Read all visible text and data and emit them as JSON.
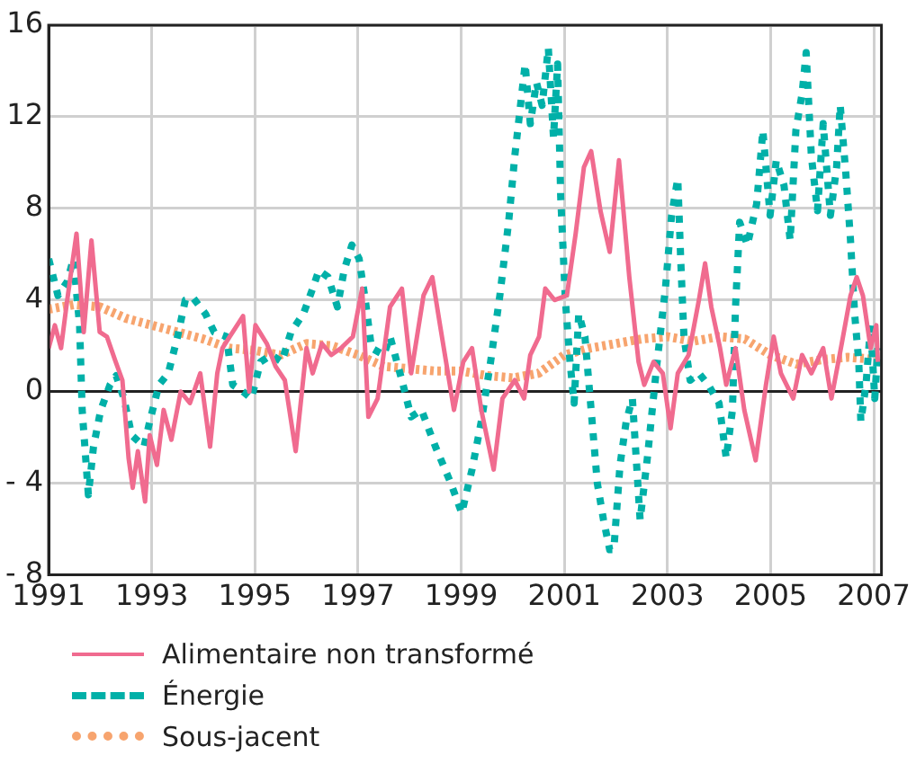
{
  "chart_data": {
    "type": "line",
    "xlim": [
      1991,
      2007.15
    ],
    "ylim": [
      -8,
      16
    ],
    "xticks": [
      1991,
      1993,
      1995,
      1997,
      1999,
      2001,
      2003,
      2005,
      2007
    ],
    "yticks": [
      {
        "value": -8,
        "label": "- 8"
      },
      {
        "value": -4,
        "label": "- 4"
      },
      0,
      4,
      8,
      12,
      16
    ],
    "grid": true,
    "legend": "bottom",
    "series": [
      {
        "name": "Alimentaire non transformé",
        "color": "#f06b8f",
        "line_style": "solid",
        "x": [
          1991.0,
          1991.12,
          1991.24,
          1991.36,
          1991.54,
          1991.68,
          1991.83,
          1991.99,
          1992.13,
          1992.3,
          1992.43,
          1992.55,
          1992.63,
          1992.73,
          1992.87,
          1992.96,
          1993.1,
          1993.23,
          1993.38,
          1993.56,
          1993.74,
          1993.94,
          1994.13,
          1994.27,
          1994.37,
          1994.51,
          1994.77,
          1994.89,
          1995.01,
          1995.23,
          1995.4,
          1995.58,
          1995.79,
          1996.0,
          1996.12,
          1996.3,
          1996.48,
          1996.67,
          1996.9,
          1997.08,
          1997.2,
          1997.38,
          1997.62,
          1997.85,
          1998.03,
          1998.27,
          1998.44,
          1998.59,
          1998.86,
          1999.04,
          1999.21,
          1999.39,
          1999.63,
          1999.8,
          2000.04,
          2000.22,
          2000.34,
          2000.51,
          2000.63,
          2000.81,
          2001.05,
          2001.22,
          2001.38,
          2001.52,
          2001.7,
          2001.88,
          2002.06,
          2002.26,
          2002.44,
          2002.55,
          2002.73,
          2002.91,
          2003.06,
          2003.2,
          2003.41,
          2003.61,
          2003.73,
          2003.85,
          2004.02,
          2004.14,
          2004.32,
          2004.49,
          2004.71,
          2004.91,
          2005.06,
          2005.2,
          2005.44,
          2005.61,
          2005.79,
          2006.02,
          2006.18,
          2006.38,
          2006.55,
          2006.67,
          2006.79,
          2006.94,
          2007.05,
          2007.08
        ],
        "values": [
          1.9,
          2.9,
          1.9,
          4,
          6.9,
          2.6,
          6.6,
          2.6,
          2.4,
          1.3,
          0.5,
          -2.9,
          -4.2,
          -2.6,
          -4.8,
          -1.9,
          -3.2,
          -0.8,
          -2.1,
          0,
          -0.5,
          0.8,
          -2.4,
          0.8,
          1.9,
          2.4,
          3.3,
          0,
          2.9,
          2.1,
          1.1,
          0.5,
          -2.6,
          1.9,
          0.8,
          2.1,
          1.6,
          1.9,
          2.4,
          4.5,
          -1.1,
          -0.3,
          3.7,
          4.5,
          0.8,
          4.2,
          5,
          2.9,
          -0.8,
          1.3,
          1.9,
          -0.8,
          -3.4,
          -0.3,
          0.5,
          -0.3,
          1.6,
          2.4,
          4.5,
          4,
          4.2,
          6.9,
          9.8,
          10.5,
          7.9,
          6.1,
          10.1,
          5,
          1.3,
          0.3,
          1.3,
          0.8,
          -1.6,
          0.8,
          1.6,
          4,
          5.6,
          3.7,
          1.9,
          0.3,
          1.9,
          -0.8,
          -3,
          0.3,
          2.4,
          0.8,
          -0.3,
          1.6,
          0.8,
          1.9,
          -0.3,
          2.1,
          4.2,
          5,
          4.2,
          1.9,
          2.9,
          1.3
        ]
      },
      {
        "name": "Énergie",
        "color": "#00b0a8",
        "line_style": "dashed",
        "x": [
          1991.0,
          1991.18,
          1991.36,
          1991.48,
          1991.6,
          1991.65,
          1991.77,
          1991.87,
          1992.01,
          1992.19,
          1992.31,
          1992.46,
          1992.61,
          1992.85,
          1992.96,
          1993.14,
          1993.32,
          1993.5,
          1993.65,
          1993.8,
          1994.04,
          1994.21,
          1994.45,
          1994.57,
          1994.77,
          1994.93,
          1995.11,
          1995.32,
          1995.52,
          1995.7,
          1995.94,
          1996.12,
          1996.24,
          1996.42,
          1996.6,
          1996.73,
          1996.88,
          1997.02,
          1997.14,
          1997.26,
          1997.5,
          1997.62,
          1997.85,
          1998.03,
          1998.23,
          1998.5,
          1998.8,
          1999.01,
          1999.21,
          1999.39,
          1999.57,
          1999.75,
          1999.92,
          2000.04,
          2000.16,
          2000.24,
          2000.34,
          2000.46,
          2000.57,
          2000.69,
          2000.79,
          2000.87,
          2000.93,
          2001.02,
          2001.11,
          2001.19,
          2001.28,
          2001.4,
          2001.52,
          2001.64,
          2001.76,
          2001.88,
          2001.96,
          2002.08,
          2002.2,
          2002.32,
          2002.47,
          2002.61,
          2002.79,
          2002.96,
          2003.08,
          2003.2,
          2003.26,
          2003.32,
          2003.44,
          2003.61,
          2003.79,
          2004.0,
          2004.14,
          2004.26,
          2004.32,
          2004.4,
          2004.55,
          2004.73,
          2004.85,
          2004.99,
          2005.11,
          2005.26,
          2005.38,
          2005.49,
          2005.61,
          2005.69,
          2005.79,
          2005.91,
          2006.02,
          2006.16,
          2006.28,
          2006.35,
          2006.46,
          2006.55,
          2006.63,
          2006.71,
          2006.75,
          2006.85,
          2006.94,
          2007.02,
          2007.08
        ],
        "values": [
          5.8,
          4.2,
          4.8,
          5.8,
          2.9,
          -0.8,
          -4.5,
          -2.4,
          -0.8,
          0.3,
          0.7,
          -0.3,
          -1.9,
          -2.4,
          -1.3,
          0.3,
          0.8,
          2.4,
          4,
          4.1,
          3.4,
          2.6,
          2.4,
          0.3,
          0,
          -0.3,
          1.3,
          1.6,
          1.3,
          2.6,
          3.4,
          4.5,
          5.3,
          5,
          3.7,
          5.3,
          6.4,
          5.8,
          4,
          1.9,
          1.6,
          2.4,
          0.5,
          -1.1,
          -0.8,
          -2.4,
          -4,
          -5.3,
          -3.4,
          -1.3,
          1.3,
          4.2,
          7.4,
          10.3,
          12.7,
          14.3,
          11.7,
          13.5,
          12.5,
          15,
          11.1,
          14.3,
          8.5,
          4,
          1.3,
          -0.5,
          3.4,
          2.4,
          -0.8,
          -4,
          -5.6,
          -6.9,
          -6.9,
          -3.2,
          -1.3,
          -0.3,
          -5.6,
          -2.9,
          1.1,
          4.5,
          7.7,
          9.3,
          5.6,
          2.4,
          0.5,
          0.8,
          0.3,
          -0.5,
          -2.9,
          -0.8,
          3.7,
          7.4,
          6.4,
          8.2,
          11.4,
          7.7,
          10.1,
          9,
          6.6,
          11.4,
          13,
          14.8,
          10.3,
          7.9,
          11.7,
          7.7,
          9.8,
          12.5,
          9.5,
          6.6,
          3.4,
          1.3,
          -1.3,
          0.3,
          2.9,
          -0.3,
          1.9
        ]
      },
      {
        "name": "Sous-jacent",
        "color": "#f7a46e",
        "line_style": "dotted",
        "x": [
          1991,
          1991.5,
          1992,
          1992.5,
          1993,
          1993.5,
          1994,
          1994.5,
          1995,
          1995.5,
          1996,
          1996.5,
          1997,
          1997.5,
          1998,
          1998.5,
          1999,
          1999.5,
          2000,
          2000.5,
          2001,
          2001.5,
          2002,
          2002.5,
          2003,
          2003.5,
          2004,
          2004.5,
          2005,
          2005.5,
          2006,
          2006.5,
          2007.08
        ],
        "values": [
          3.6,
          3.8,
          3.7,
          3.2,
          2.9,
          2.6,
          2.3,
          1.9,
          1.8,
          1.6,
          2.1,
          2,
          1.6,
          1.1,
          1,
          0.9,
          0.9,
          0.7,
          0.6,
          0.8,
          1.6,
          1.9,
          2.1,
          2.3,
          2.4,
          2.2,
          2.4,
          2.3,
          1.6,
          1.2,
          1.4,
          1.5,
          1.4
        ]
      }
    ]
  }
}
